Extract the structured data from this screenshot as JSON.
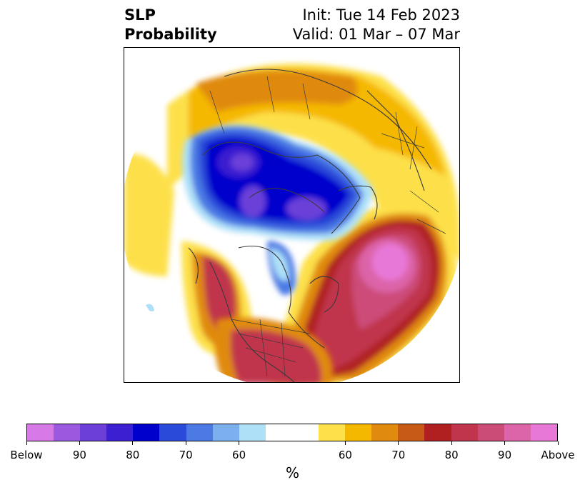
{
  "header": {
    "title_line1": "SLP",
    "title_line2": "Probability",
    "init_text": "Init: Tue 14 Feb 2023",
    "valid_text": "Valid: 01 Mar – 07 Mar"
  },
  "map": {
    "projection": "polar stereographic (North Pole)",
    "icons": [
      "coastline-icon",
      "country-border-icon"
    ]
  },
  "colorbar": {
    "label": "%",
    "colors": [
      "#d77ae8",
      "#9b59e0",
      "#6b3fd8",
      "#3b1fd0",
      "#0000cc",
      "#2a4ad8",
      "#4b7ae4",
      "#7ab0ee",
      "#aee0f8",
      "#ffffff",
      "#ffffff",
      "#fde04a",
      "#f5b800",
      "#e08a10",
      "#c85a18",
      "#b02020",
      "#c0344c",
      "#cc4c78",
      "#dc64a8",
      "#e878d8"
    ],
    "tick_labels": [
      "Below",
      "90",
      "80",
      "70",
      "60",
      "60",
      "70",
      "80",
      "90",
      "Above"
    ]
  }
}
